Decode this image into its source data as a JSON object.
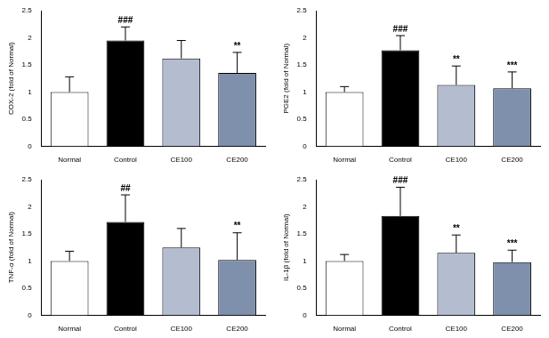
{
  "chart_data": [
    {
      "type": "bar",
      "y_label": "COX-2 (fold of Normal)",
      "categories": [
        "Normal",
        "Control",
        "CE100",
        "CE200"
      ],
      "values": [
        1.0,
        1.95,
        1.62,
        1.35
      ],
      "errors": [
        0.28,
        0.25,
        0.33,
        0.38
      ],
      "annotations": [
        null,
        "###",
        null,
        "**"
      ],
      "colors": [
        "#ffffff",
        "#000000",
        "#b4bdd0",
        "#7e90ab"
      ],
      "ylim": [
        0,
        2.5
      ],
      "yticks": [
        0,
        0.5,
        1,
        1.5,
        2,
        2.5
      ],
      "grid": false
    },
    {
      "type": "bar",
      "y_label": "PGE2 (fold of Normal)",
      "categories": [
        "Normal",
        "Control",
        "CE100",
        "CE200"
      ],
      "values": [
        1.0,
        1.77,
        1.13,
        1.07
      ],
      "errors": [
        0.1,
        0.27,
        0.35,
        0.3
      ],
      "annotations": [
        null,
        "###",
        "**",
        "***"
      ],
      "colors": [
        "#ffffff",
        "#000000",
        "#b4bdd0",
        "#7e90ab"
      ],
      "ylim": [
        0,
        2.5
      ],
      "yticks": [
        0,
        0.5,
        1,
        1.5,
        2,
        2.5
      ],
      "grid": false
    },
    {
      "type": "bar",
      "y_label": "TNF-α (fold of Normal)",
      "categories": [
        "Normal",
        "Control",
        "CE100",
        "CE200"
      ],
      "values": [
        1.0,
        1.72,
        1.25,
        1.02
      ],
      "errors": [
        0.18,
        0.5,
        0.35,
        0.5
      ],
      "annotations": [
        null,
        "##",
        null,
        "**"
      ],
      "colors": [
        "#ffffff",
        "#000000",
        "#b4bdd0",
        "#7e90ab"
      ],
      "ylim": [
        0,
        2.5
      ],
      "yticks": [
        0,
        0.5,
        1,
        1.5,
        2,
        2.5
      ],
      "grid": false
    },
    {
      "type": "bar",
      "y_label": "IL-1β (fold of Normal)",
      "categories": [
        "Normal",
        "Control",
        "CE100",
        "CE200"
      ],
      "values": [
        1.0,
        1.83,
        1.15,
        0.98
      ],
      "errors": [
        0.12,
        0.53,
        0.33,
        0.22
      ],
      "annotations": [
        null,
        "###",
        "**",
        "***"
      ],
      "colors": [
        "#ffffff",
        "#000000",
        "#b4bdd0",
        "#7e90ab"
      ],
      "ylim": [
        0,
        2.5
      ],
      "yticks": [
        0,
        0.5,
        1,
        1.5,
        2,
        2.5
      ],
      "grid": false
    }
  ]
}
